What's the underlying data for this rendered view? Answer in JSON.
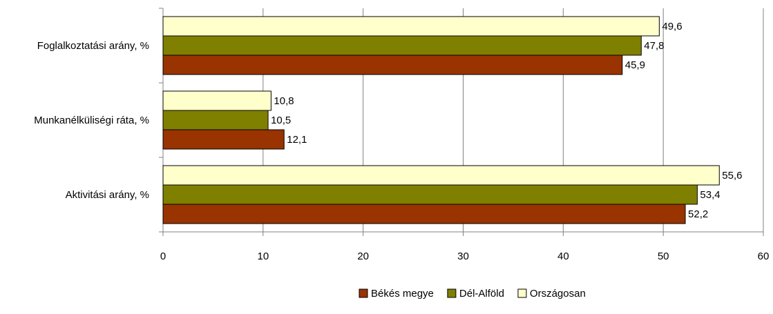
{
  "chart_data": {
    "type": "bar",
    "orientation": "horizontal",
    "title": "",
    "xlabel": "",
    "ylabel": "",
    "xlim": [
      0,
      60
    ],
    "x_ticks": [
      0,
      10,
      20,
      30,
      40,
      50,
      60
    ],
    "grid": true,
    "legend_position": "bottom",
    "categories": [
      "Foglalkoztatási arány, %",
      "Munkanélküliségi ráta, %",
      "Aktivitási arány, %"
    ],
    "series": [
      {
        "name": "Békés megye",
        "color": "#993300",
        "values": [
          45.9,
          12.1,
          52.2
        ]
      },
      {
        "name": "Dél-Alföld",
        "color": "#808000",
        "values": [
          47.8,
          10.5,
          53.4
        ]
      },
      {
        "name": "Országosan",
        "color": "#FFFFCC",
        "values": [
          49.6,
          10.8,
          55.6
        ]
      }
    ]
  }
}
